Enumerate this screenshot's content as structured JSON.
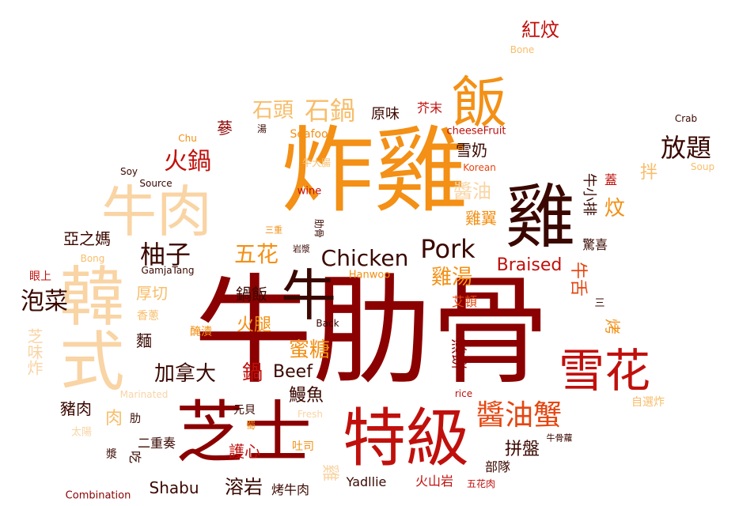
{
  "palette": {
    "darkest": "#3a0800",
    "dark_red": "#8b0000",
    "red": "#c0100c",
    "orange_red": "#e6450f",
    "orange": "#f39015",
    "light_orange": "#f8bd6a",
    "peach": "#f9d4a4"
  },
  "words": [
    {
      "text": "牛肋骨"
    },
    {
      "text": "炸雞"
    },
    {
      "text": "芝士"
    },
    {
      "text": "特級"
    },
    {
      "text": "韓式"
    },
    {
      "text": "雞"
    },
    {
      "text": "牛肉"
    },
    {
      "text": "飯"
    },
    {
      "text": "牛"
    },
    {
      "text": "雪花"
    },
    {
      "text": "醬油蟹"
    },
    {
      "text": "放題"
    },
    {
      "text": "石頭"
    },
    {
      "text": "石鍋"
    },
    {
      "text": "火鍋"
    },
    {
      "text": "Chicken"
    },
    {
      "text": "Pork"
    },
    {
      "text": "柚子"
    },
    {
      "text": "五花"
    },
    {
      "text": "泡菜"
    },
    {
      "text": "雞湯"
    },
    {
      "text": "Braised"
    },
    {
      "text": "蜜糖"
    },
    {
      "text": "加拿大"
    },
    {
      "text": "Beef"
    },
    {
      "text": "鍋"
    },
    {
      "text": "雪奶"
    },
    {
      "text": "醬油"
    },
    {
      "text": "紅炆"
    },
    {
      "text": "Shabu"
    },
    {
      "text": "溶岩"
    },
    {
      "text": "拼盤"
    },
    {
      "text": "Bone"
    },
    {
      "text": "原味"
    },
    {
      "text": "芥末"
    },
    {
      "text": "湯"
    },
    {
      "text": "蔘"
    },
    {
      "text": "Seafood"
    },
    {
      "text": "cheeseFruit"
    },
    {
      "text": "Crab"
    },
    {
      "text": "Chu"
    },
    {
      "text": "Soy"
    },
    {
      "text": "Source"
    },
    {
      "text": "牛大腸"
    },
    {
      "text": "Korean"
    },
    {
      "text": "Soup"
    },
    {
      "text": "wine"
    },
    {
      "text": "拌"
    },
    {
      "text": "蓋"
    },
    {
      "text": "炆"
    },
    {
      "text": "牛小排"
    },
    {
      "text": "雞翼"
    },
    {
      "text": "肋骨"
    },
    {
      "text": "亞之媽"
    },
    {
      "text": "三重"
    },
    {
      "text": "Bong"
    },
    {
      "text": "岩漿"
    },
    {
      "text": "GamjaTang"
    },
    {
      "text": "Hanwoo"
    },
    {
      "text": "眼上"
    },
    {
      "text": "厚切"
    },
    {
      "text": "鍋飯"
    },
    {
      "text": "香蔥"
    },
    {
      "text": "驚喜"
    },
    {
      "text": "牛舌"
    },
    {
      "text": "艾頓"
    },
    {
      "text": "三"
    },
    {
      "text": "火腿"
    },
    {
      "text": "芝味炸"
    },
    {
      "text": "醃漬"
    },
    {
      "text": "Back"
    },
    {
      "text": "烤"
    },
    {
      "text": "麵"
    },
    {
      "text": "煎餅"
    },
    {
      "text": "Marinated"
    },
    {
      "text": "rice"
    },
    {
      "text": "自選炸"
    },
    {
      "text": "鰻魚"
    },
    {
      "text": "豬肉"
    },
    {
      "text": "肉"
    },
    {
      "text": "元貝"
    },
    {
      "text": "Fresh"
    },
    {
      "text": "肋"
    },
    {
      "text": "太陽"
    },
    {
      "text": "二重奏"
    },
    {
      "text": "蜀"
    },
    {
      "text": "吐司"
    },
    {
      "text": "牛骨蘿"
    },
    {
      "text": "護心"
    },
    {
      "text": "漿"
    },
    {
      "text": "吃"
    },
    {
      "text": "部隊"
    },
    {
      "text": "雞"
    },
    {
      "text": "Yadllie"
    },
    {
      "text": "火山岩"
    },
    {
      "text": "五花肉"
    },
    {
      "text": "Combination"
    },
    {
      "text": "烤牛肉"
    }
  ]
}
